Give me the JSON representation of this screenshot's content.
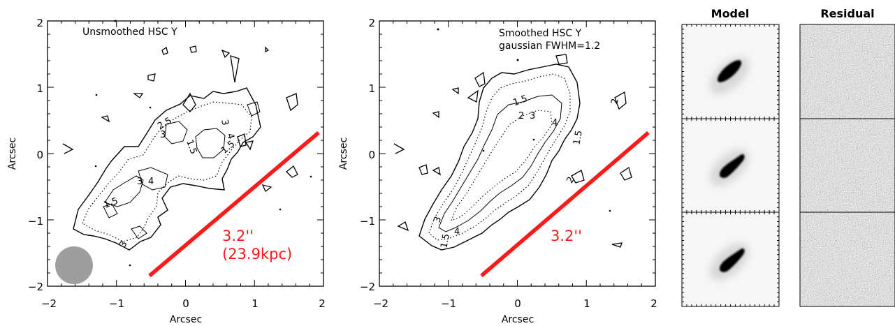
{
  "panel_left": {
    "title": "Unsmoothed HSC Y",
    "xlabel": "Arcsec",
    "ylabel": "Arcsec",
    "x_ticks": [
      "−2",
      "−1",
      "0",
      "1",
      "2"
    ],
    "y_ticks": [
      "−2",
      "−1",
      "0",
      "1",
      "2"
    ],
    "scale_label_1": "3.2''",
    "scale_label_2": "(23.9kpc)",
    "contour_labels": [
      "3",
      "2.5",
      "1.5",
      "3",
      "4",
      "1.5",
      "3",
      "1.5",
      "4",
      "3"
    ]
  },
  "panel_mid": {
    "title_line1": "Smoothed HSC Y",
    "title_line2": "gaussian FWHM=1.2",
    "xlabel": "Arcsec",
    "ylabel": "Arcsec",
    "x_ticks": [
      "−2",
      "−1",
      "0",
      "1",
      "2"
    ],
    "y_ticks": [
      "−2",
      "−1",
      "0",
      "1",
      "2"
    ],
    "scale_label": "3.2''",
    "contour_labels": [
      "1.5",
      "2",
      "3",
      "4",
      "1.5",
      "2",
      "3",
      "4",
      "1.5",
      "2"
    ]
  },
  "model_column": {
    "title": "Model"
  },
  "residual_column": {
    "title": "Residual"
  },
  "colors": {
    "scale_bar": "#ff1a1a",
    "beam": "#9e9e9e"
  },
  "chart_data": [
    {
      "type": "contour",
      "title": "Unsmoothed HSC Y",
      "xlabel": "Arcsec",
      "ylabel": "Arcsec",
      "xlim": [
        -2,
        2
      ],
      "ylim": [
        -2,
        2
      ],
      "scale_bar": {
        "from": [
          -0.55,
          -1.82
        ],
        "to": [
          1.9,
          0.3
        ],
        "label": "3.2'' (23.9kpc)"
      },
      "beam": {
        "center": [
          -1.63,
          -1.62
        ],
        "diameter_arcsec": 0.55
      }
    },
    {
      "type": "contour",
      "title": "Smoothed HSC Y gaussian FWHM=1.2",
      "xlabel": "Arcsec",
      "ylabel": "Arcsec",
      "xlim": [
        -2,
        2
      ],
      "ylim": [
        -2,
        2
      ],
      "scale_bar": {
        "from": [
          -0.55,
          -1.82
        ],
        "to": [
          1.9,
          0.3
        ],
        "label": "3.2''"
      }
    }
  ]
}
